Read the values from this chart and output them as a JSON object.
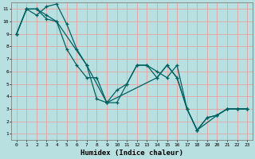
{
  "xlabel": "Humidex (Indice chaleur)",
  "background_color": "#b8e0e0",
  "grid_color": "#e8a0a0",
  "line_color": "#006060",
  "marker_color": "#006060",
  "xlim": [
    -0.5,
    23.5
  ],
  "ylim": [
    0.5,
    11.5
  ],
  "xticks": [
    0,
    1,
    2,
    3,
    4,
    5,
    6,
    7,
    8,
    9,
    10,
    11,
    12,
    13,
    14,
    15,
    16,
    17,
    18,
    19,
    20,
    21,
    22,
    23
  ],
  "yticks": [
    1,
    2,
    3,
    4,
    5,
    6,
    7,
    8,
    9,
    10,
    11
  ],
  "series1": [
    [
      0,
      9
    ],
    [
      1,
      11
    ],
    [
      2,
      11
    ],
    [
      3,
      10.2
    ],
    [
      4,
      10
    ],
    [
      5,
      7.8
    ],
    [
      6,
      6.5
    ],
    [
      7,
      5.5
    ],
    [
      8,
      5.5
    ],
    [
      9,
      3.5
    ],
    [
      10,
      4.5
    ],
    [
      11,
      5.0
    ],
    [
      12,
      6.5
    ],
    [
      13,
      6.5
    ],
    [
      14,
      5.5
    ],
    [
      15,
      6.5
    ],
    [
      16,
      5.5
    ],
    [
      17,
      3.0
    ],
    [
      18,
      1.3
    ],
    [
      19,
      2.3
    ],
    [
      20,
      2.5
    ],
    [
      21,
      3.0
    ],
    [
      22,
      3.0
    ],
    [
      23,
      3.0
    ]
  ],
  "series2": [
    [
      0,
      9
    ],
    [
      1,
      11
    ],
    [
      2,
      10.5
    ],
    [
      3,
      11.2
    ],
    [
      4,
      11.4
    ],
    [
      5,
      9.8
    ],
    [
      6,
      7.8
    ],
    [
      7,
      6.5
    ],
    [
      8,
      3.8
    ],
    [
      9,
      3.5
    ],
    [
      10,
      3.5
    ],
    [
      11,
      5.0
    ],
    [
      12,
      6.5
    ],
    [
      13,
      6.5
    ],
    [
      14,
      6.0
    ],
    [
      15,
      5.5
    ],
    [
      16,
      6.5
    ],
    [
      17,
      3.0
    ],
    [
      18,
      1.3
    ],
    [
      19,
      2.3
    ],
    [
      20,
      2.5
    ],
    [
      21,
      3.0
    ],
    [
      22,
      3.0
    ],
    [
      23,
      3.0
    ]
  ],
  "series3": [
    [
      0,
      9
    ],
    [
      1,
      11
    ],
    [
      2,
      11
    ],
    [
      3,
      10.5
    ],
    [
      4,
      10.0
    ],
    [
      7,
      6.5
    ],
    [
      9,
      3.5
    ],
    [
      14,
      5.5
    ],
    [
      15,
      6.5
    ],
    [
      16,
      5.5
    ],
    [
      17,
      3.0
    ],
    [
      18,
      1.3
    ],
    [
      20,
      2.5
    ],
    [
      21,
      3.0
    ],
    [
      22,
      3.0
    ],
    [
      23,
      3.0
    ]
  ]
}
